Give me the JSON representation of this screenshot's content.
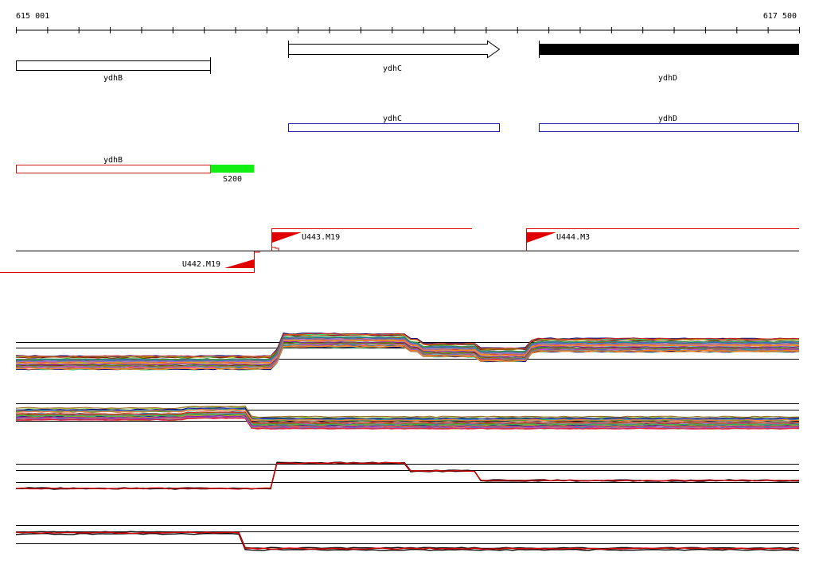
{
  "ruler": {
    "start_label": "615 001",
    "end_label": "617 500"
  },
  "genes": {
    "ydhB_label": "ydhB",
    "ydhC_label": "ydhC",
    "ydhD_label": "ydhD"
  },
  "annotations": {
    "ydhC_label": "ydhC",
    "ydhD_label": "ydhD",
    "ydhB_label": "ydhB",
    "s200_label": "S200"
  },
  "transcripts": {
    "u443_label": "U443.M19",
    "u444_label": "U444.M3",
    "u442_label": "U442.M19"
  },
  "colors": {
    "gene_outline": "#000000",
    "annotation_blue": "#1a1aa8",
    "annotation_red": "#cc1a1a",
    "s200_green": "#11ee11",
    "transcript_red": "#e00000",
    "bundle_palette": [
      "#e6194b",
      "#3cb44b",
      "#4363d8",
      "#f58231",
      "#911eb4",
      "#46c0c8",
      "#f032e6",
      "#9bcd2a",
      "#ff8fa0",
      "#008080",
      "#b57edc",
      "#9a6324",
      "#c8b400",
      "#800000",
      "#36d68c",
      "#808000",
      "#e08a5c",
      "#000075",
      "#808080",
      "#2aa02a",
      "#d62728",
      "#1f77b4",
      "#ff7f0e",
      "#9467bd"
    ]
  }
}
